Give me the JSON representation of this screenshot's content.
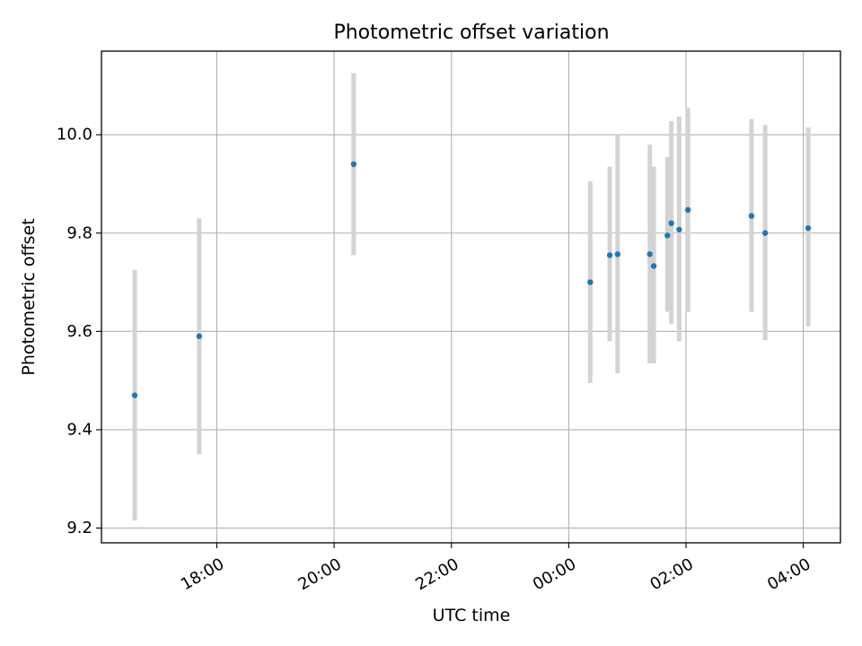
{
  "chart_data": {
    "type": "scatter",
    "title": "Photometric offset variation",
    "xlabel": "UTC time",
    "ylabel": "Photometric offset",
    "x_ticks": [
      "18:00",
      "20:00",
      "22:00",
      "00:00",
      "02:00",
      "04:00"
    ],
    "y_ticks": [
      "9.2",
      "9.4",
      "9.6",
      "9.8",
      "10.0"
    ],
    "ylim": [
      9.17,
      10.17
    ],
    "xlim": [
      "16:02",
      "04:38"
    ],
    "grid": true,
    "colors": {
      "points": "#1f77b4",
      "errorbars": "#d3d3d3",
      "grid": "#b0b0b0"
    },
    "series": [
      {
        "points": [
          {
            "x": "16:36",
            "y": 9.47,
            "yerr_low": 9.215,
            "yerr_high": 9.725
          },
          {
            "x": "17:42",
            "y": 9.59,
            "yerr_low": 9.35,
            "yerr_high": 9.83
          },
          {
            "x": "20:20",
            "y": 9.94,
            "yerr_low": 9.755,
            "yerr_high": 10.125
          },
          {
            "x": "00:22",
            "y": 9.7,
            "yerr_low": 9.495,
            "yerr_high": 9.905
          },
          {
            "x": "00:42",
            "y": 9.755,
            "yerr_low": 9.58,
            "yerr_high": 9.935
          },
          {
            "x": "00:50",
            "y": 9.757,
            "yerr_low": 9.515,
            "yerr_high": 10.0
          },
          {
            "x": "01:23",
            "y": 9.757,
            "yerr_low": 9.535,
            "yerr_high": 9.98
          },
          {
            "x": "01:27",
            "y": 9.733,
            "yerr_low": 9.535,
            "yerr_high": 9.935
          },
          {
            "x": "01:41",
            "y": 9.795,
            "yerr_low": 9.64,
            "yerr_high": 9.955
          },
          {
            "x": "01:45",
            "y": 9.82,
            "yerr_low": 9.615,
            "yerr_high": 10.028
          },
          {
            "x": "01:53",
            "y": 9.807,
            "yerr_low": 9.58,
            "yerr_high": 10.037
          },
          {
            "x": "02:02",
            "y": 9.847,
            "yerr_low": 9.64,
            "yerr_high": 10.055
          },
          {
            "x": "03:07",
            "y": 9.835,
            "yerr_low": 9.64,
            "yerr_high": 10.032
          },
          {
            "x": "03:21",
            "y": 9.8,
            "yerr_low": 9.582,
            "yerr_high": 10.02
          },
          {
            "x": "04:05",
            "y": 9.81,
            "yerr_low": 9.61,
            "yerr_high": 10.015
          }
        ]
      }
    ]
  }
}
